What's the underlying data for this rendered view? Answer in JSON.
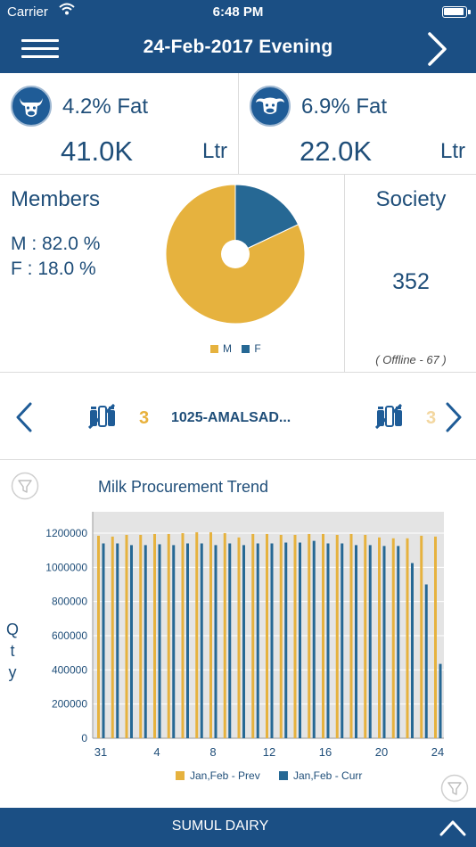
{
  "status_bar": {
    "carrier": "Carrier",
    "time": "6:48 PM"
  },
  "header": {
    "title": "24-Feb-2017  Evening"
  },
  "fat_cards": [
    {
      "label": "4.2% Fat",
      "value": "41.0K",
      "unit": "Ltr",
      "icon": "cow-icon"
    },
    {
      "label": "6.9% Fat",
      "value": "22.0K",
      "unit": "Ltr",
      "icon": "buffalo-icon"
    }
  ],
  "members": {
    "title": "Members",
    "male": "M : 82.0 %",
    "female": "F : 18.0 %",
    "legend_m": "M",
    "legend_f": "F",
    "male_pct": 82.0,
    "female_pct": 18.0,
    "male_color": "#e6b23e",
    "female_color": "#266894"
  },
  "society": {
    "title": "Society",
    "count": "352",
    "offline": "( Offline - 67 )"
  },
  "selector": {
    "number": "3",
    "name": "1025-AMALSAD...",
    "next_number": "3"
  },
  "chart_data": {
    "type": "bar",
    "title": "Milk Procurement Trend",
    "ylabel": "Qty",
    "ylim": [
      0,
      1200000
    ],
    "yticks": [
      "0",
      "200000",
      "400000",
      "600000",
      "800000",
      "1000000",
      "1200000"
    ],
    "x": [
      31,
      1,
      2,
      3,
      4,
      5,
      6,
      7,
      8,
      9,
      10,
      11,
      12,
      13,
      14,
      15,
      16,
      17,
      18,
      19,
      20,
      21,
      22,
      23,
      24
    ],
    "xtick_labels": [
      "31",
      "4",
      "8",
      "12",
      "16",
      "20",
      "24"
    ],
    "xtick_index": [
      0,
      4,
      8,
      12,
      16,
      20,
      24
    ],
    "series": [
      {
        "name": "Jan,Feb - Prev",
        "color": "#e6b23e",
        "values": [
          1185000,
          1180000,
          1190000,
          1190000,
          1195000,
          1195000,
          1200000,
          1205000,
          1205000,
          1200000,
          1175000,
          1195000,
          1195000,
          1190000,
          1190000,
          1195000,
          1195000,
          1190000,
          1195000,
          1190000,
          1175000,
          1170000,
          1170000,
          1185000,
          1180000
        ]
      },
      {
        "name": "Jan,Feb - Curr",
        "color": "#266894",
        "values": [
          1140000,
          1140000,
          1130000,
          1130000,
          1135000,
          1130000,
          1140000,
          1140000,
          1130000,
          1140000,
          1130000,
          1140000,
          1140000,
          1145000,
          1145000,
          1155000,
          1140000,
          1140000,
          1130000,
          1130000,
          1125000,
          1125000,
          1025000,
          900000,
          435000
        ]
      }
    ]
  },
  "footer": {
    "label": "SUMUL DAIRY"
  }
}
